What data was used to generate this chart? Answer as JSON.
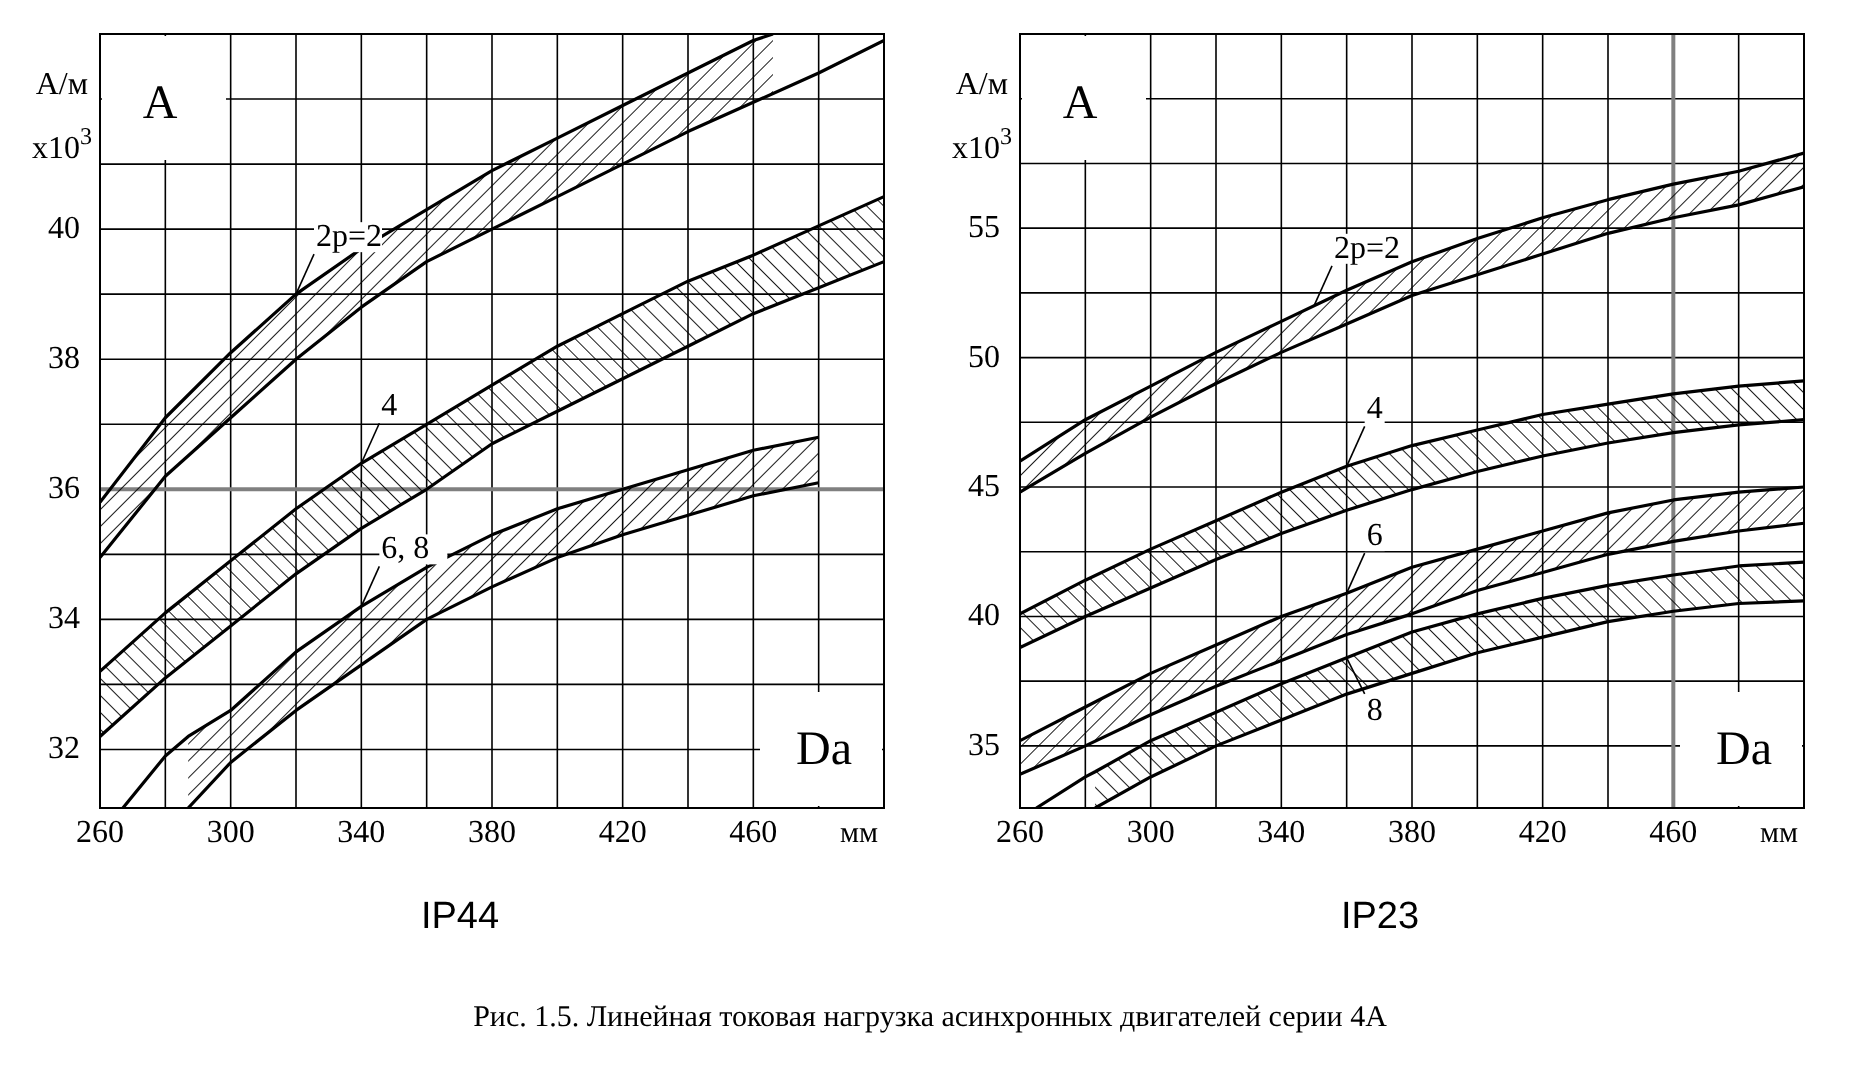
{
  "chart_data": [
    {
      "type": "line",
      "title": "IP44",
      "xlabel": "мм",
      "ylabel": "А/м x10$^{3}$",
      "xlim": [
        260,
        500
      ],
      "ylim": [
        31.1,
        43
      ],
      "xticks": [
        260,
        {
          "value": 280,
          "label": null
        },
        300,
        {
          "value": 320,
          "label": null
        },
        340,
        {
          "value": 360,
          "label": null
        },
        380,
        {
          "value": 400,
          "label": null
        },
        420,
        {
          "value": 440,
          "label": null
        },
        460,
        {
          "value": 480,
          "label": null
        }
      ],
      "yticks": [
        32,
        {
          "value": 33,
          "label": null
        },
        34,
        {
          "value": 35,
          "label": null
        },
        36,
        {
          "value": 37,
          "label": null
        },
        38,
        {
          "value": 39,
          "label": null
        },
        40,
        {
          "value": 41,
          "label": null
        },
        {
          "value": 42,
          "label": null
        }
      ],
      "grid": true,
      "marker": "none",
      "ref_lines": [
        {
          "axis": "y",
          "value": 36,
          "color": "#808080"
        }
      ],
      "series": [
        {
          "color": "#000000",
          "x": [
            260,
            280,
            300,
            320,
            340,
            360,
            380,
            400,
            420,
            440,
            460,
            466
          ],
          "values": [
            35.8,
            37.1,
            38.1,
            39.0,
            39.7,
            40.3,
            40.9,
            41.4,
            41.9,
            42.4,
            42.9,
            43.0
          ],
          "upper": [
            35.8,
            37.1,
            38.1,
            39.0,
            39.7,
            40.3,
            40.9,
            41.4,
            41.9,
            42.4,
            42.9,
            43.0
          ],
          "lower": [
            34.95,
            36.2,
            37.1,
            38.0,
            38.8,
            39.5,
            40.0,
            40.5,
            41.0,
            41.5,
            41.95,
            42.1
          ]
        },
        {
          "color": "#000000",
          "x": [
            260,
            280,
            300,
            320,
            340,
            360,
            380,
            400,
            420,
            440,
            460,
            480,
            500
          ],
          "values": [
            34.95,
            36.2,
            37.1,
            38.0,
            38.8,
            39.5,
            40.0,
            40.5,
            41.0,
            41.5,
            41.95,
            42.4,
            42.9
          ]
        },
        {
          "color": "#000000",
          "x": [
            260,
            280,
            300,
            320,
            340,
            360,
            380,
            400,
            420,
            440,
            460,
            480,
            500
          ],
          "values": [
            33.2,
            34.1,
            34.9,
            35.7,
            36.4,
            37.0,
            37.6,
            38.2,
            38.7,
            39.2,
            39.6,
            40.05,
            40.5
          ],
          "upper": [
            33.2,
            34.1,
            34.9,
            35.7,
            36.4,
            37.0,
            37.6,
            38.2,
            38.7,
            39.2,
            39.6,
            40.05,
            40.5
          ],
          "lower": [
            32.2,
            33.1,
            33.9,
            34.7,
            35.4,
            36.0,
            36.7,
            37.2,
            37.7,
            38.2,
            38.7,
            39.1,
            39.5
          ]
        },
        {
          "color": "#000000",
          "x": [
            260,
            280,
            300,
            320,
            340,
            360,
            380,
            400,
            420,
            440,
            460,
            480,
            500
          ],
          "values": [
            32.2,
            33.1,
            33.9,
            34.7,
            35.4,
            36.0,
            36.7,
            37.2,
            37.7,
            38.2,
            38.7,
            39.1,
            39.5
          ]
        },
        {
          "color": "#000000",
          "x": [
            267,
            280,
            287,
            300,
            320,
            340,
            360,
            380,
            400,
            420,
            440,
            460,
            480
          ],
          "values": [
            31.1,
            31.9,
            32.2,
            32.6,
            33.5,
            34.2,
            34.8,
            35.3,
            35.7,
            36.0,
            36.3,
            36.6,
            36.8
          ],
          "upper": [
            null,
            null,
            32.2,
            32.6,
            33.5,
            34.2,
            34.8,
            35.3,
            35.7,
            36.0,
            36.3,
            36.6,
            36.8
          ],
          "lower": [
            null,
            null,
            31.1,
            31.8,
            32.6,
            33.3,
            34.0,
            34.5,
            34.95,
            35.3,
            35.6,
            35.9,
            36.1
          ]
        },
        {
          "color": "#000000",
          "x": [
            287,
            300,
            320,
            340,
            360,
            380,
            400,
            420,
            440,
            460,
            480
          ],
          "values": [
            31.1,
            31.8,
            32.6,
            33.3,
            34.0,
            34.5,
            34.95,
            35.3,
            35.6,
            35.9,
            36.1
          ]
        }
      ],
      "annotations": [
        "A",
        "Da",
        {
          "text": "2p=2",
          "x": 320,
          "y": 39.0
        },
        {
          "text": "4",
          "x": 340,
          "y": 36.4
        },
        {
          "text": "6, 8",
          "x": 340,
          "y": 34.2
        }
      ]
    },
    {
      "type": "line",
      "title": "IP23",
      "xlabel": "мм",
      "ylabel": "А/м x10$^{3}$",
      "xlim": [
        260,
        500
      ],
      "ylim": [
        32.6,
        62.5
      ],
      "xticks": [
        260,
        {
          "value": 280,
          "label": null
        },
        300,
        {
          "value": 320,
          "label": null
        },
        340,
        {
          "value": 360,
          "label": null
        },
        380,
        {
          "value": 400,
          "label": null
        },
        420,
        {
          "value": 440,
          "label": null
        },
        460,
        {
          "value": 480,
          "label": null
        }
      ],
      "yticks": [
        35,
        {
          "value": 37.5,
          "label": null
        },
        40,
        {
          "value": 42.5,
          "label": null
        },
        45,
        {
          "value": 47.5,
          "label": null
        },
        50,
        {
          "value": 52.5,
          "label": null
        },
        55,
        {
          "value": 57.5,
          "label": null
        },
        {
          "value": 60,
          "label": null
        }
      ],
      "grid": true,
      "marker": "none",
      "ref_lines": [
        {
          "axis": "x",
          "value": 460,
          "color": "#808080"
        }
      ],
      "series": [
        {
          "color": "#000000",
          "x": [
            260,
            280,
            300,
            320,
            340,
            360,
            380,
            400,
            420,
            440,
            460,
            480,
            500
          ],
          "values": [
            46.0,
            47.6,
            48.9,
            50.2,
            51.4,
            52.6,
            53.7,
            54.6,
            55.4,
            56.1,
            56.7,
            57.2,
            57.9
          ],
          "upper": [
            46.0,
            47.6,
            48.9,
            50.2,
            51.4,
            52.6,
            53.7,
            54.6,
            55.4,
            56.1,
            56.7,
            57.2,
            57.9
          ],
          "lower": [
            44.8,
            46.3,
            47.7,
            49.0,
            50.2,
            51.3,
            52.4,
            53.2,
            54.0,
            54.8,
            55.4,
            55.9,
            56.6
          ]
        },
        {
          "color": "#000000",
          "x": [
            260,
            280,
            300,
            320,
            340,
            360,
            380,
            400,
            420,
            440,
            460,
            480,
            500
          ],
          "values": [
            44.8,
            46.3,
            47.7,
            49.0,
            50.2,
            51.3,
            52.4,
            53.2,
            54.0,
            54.8,
            55.4,
            55.9,
            56.6
          ]
        },
        {
          "color": "#000000",
          "x": [
            260,
            280,
            300,
            320,
            340,
            360,
            380,
            400,
            420,
            440,
            460,
            480,
            500
          ],
          "values": [
            40.1,
            41.4,
            42.6,
            43.7,
            44.8,
            45.8,
            46.6,
            47.2,
            47.8,
            48.2,
            48.6,
            48.9,
            49.1
          ],
          "upper": [
            40.1,
            41.4,
            42.6,
            43.7,
            44.8,
            45.8,
            46.6,
            47.2,
            47.8,
            48.2,
            48.6,
            48.9,
            49.1
          ],
          "lower": [
            38.8,
            40.0,
            41.1,
            42.2,
            43.2,
            44.1,
            44.9,
            45.6,
            46.2,
            46.7,
            47.1,
            47.4,
            47.6
          ]
        },
        {
          "color": "#000000",
          "x": [
            260,
            280,
            300,
            320,
            340,
            360,
            380,
            400,
            420,
            440,
            460,
            480,
            500
          ],
          "values": [
            38.8,
            40.0,
            41.1,
            42.2,
            43.2,
            44.1,
            44.9,
            45.6,
            46.2,
            46.7,
            47.1,
            47.4,
            47.6
          ]
        },
        {
          "color": "#000000",
          "x": [
            260,
            280,
            300,
            320,
            340,
            360,
            380,
            400,
            420,
            440,
            460,
            480,
            500
          ],
          "values": [
            35.2,
            36.5,
            37.8,
            38.9,
            40.0,
            40.9,
            41.9,
            42.6,
            43.3,
            44.0,
            44.5,
            44.8,
            45.0
          ],
          "upper": [
            35.2,
            36.5,
            37.8,
            38.9,
            40.0,
            40.9,
            41.9,
            42.6,
            43.3,
            44.0,
            44.5,
            44.8,
            45.0
          ],
          "lower": [
            33.9,
            35.0,
            36.2,
            37.3,
            38.3,
            39.3,
            40.1,
            41.0,
            41.7,
            42.4,
            42.9,
            43.3,
            43.6
          ]
        },
        {
          "color": "#000000",
          "x": [
            260,
            280,
            300,
            320,
            340,
            360,
            380,
            400,
            420,
            440,
            460,
            480,
            500
          ],
          "values": [
            33.9,
            35.0,
            36.2,
            37.3,
            38.3,
            39.3,
            40.1,
            41.0,
            41.7,
            42.4,
            42.9,
            43.3,
            43.6
          ]
        },
        {
          "color": "#000000",
          "x": [
            265,
            280,
            283,
            300,
            320,
            340,
            360,
            380,
            400,
            420,
            440,
            460,
            480,
            500
          ],
          "values": [
            32.6,
            33.8,
            34.0,
            35.2,
            36.3,
            37.4,
            38.4,
            39.4,
            40.1,
            40.7,
            41.2,
            41.6,
            41.95,
            42.1
          ],
          "upper": [
            null,
            null,
            34.0,
            35.2,
            36.3,
            37.4,
            38.4,
            39.4,
            40.1,
            40.7,
            41.2,
            41.6,
            41.95,
            42.1
          ],
          "lower": [
            null,
            null,
            32.6,
            33.8,
            35.0,
            36.0,
            37.0,
            37.8,
            38.6,
            39.2,
            39.8,
            40.2,
            40.5,
            40.6
          ]
        },
        {
          "color": "#000000",
          "x": [
            283,
            300,
            320,
            340,
            360,
            380,
            400,
            420,
            440,
            460,
            480,
            500
          ],
          "values": [
            32.6,
            33.8,
            35.0,
            36.0,
            37.0,
            37.8,
            38.6,
            39.2,
            39.8,
            40.2,
            40.5,
            40.6
          ]
        }
      ],
      "annotations": [
        "A",
        "Da",
        "Рис. 1.5. Линейная токовая нагрузка асинхронных двигателей серии 4А",
        {
          "text": "2p=2",
          "x": 350,
          "y": 52.0
        },
        {
          "text": "4",
          "x": 360,
          "y": 45.8
        },
        {
          "text": "6",
          "x": 360,
          "y": 40.9
        },
        {
          "text": "8",
          "x": 360,
          "y": 38.4
        }
      ]
    }
  ]
}
